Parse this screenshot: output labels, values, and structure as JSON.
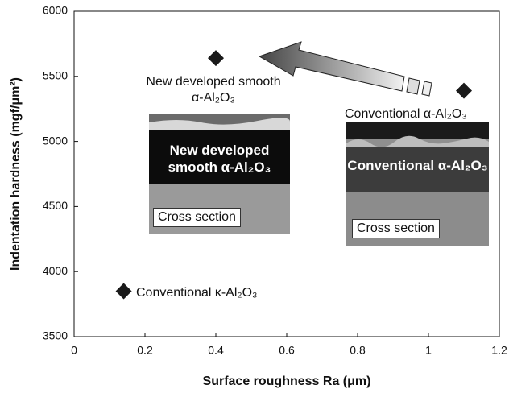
{
  "chart_data": {
    "type": "scatter",
    "x_label": "Surface roughness Ra (μm)",
    "y_label": "Indentation hardness (mgf/μm²)",
    "x": [
      0.4,
      1.1,
      0.14
    ],
    "values": [
      5640,
      5390,
      3850
    ],
    "color": "#1a1a1a",
    "marker": "diamond",
    "point_labels": [
      "New developed smooth α-Al₂O₃",
      "Conventional α-Al₂O₃",
      "Conventional κ-Al₂O₃"
    ],
    "insets": [
      {
        "label": "New developed smooth α-Al₂O₃",
        "caption": "Cross section"
      },
      {
        "label": "Conventional α-Al₂O₃",
        "caption": "Cross section"
      }
    ],
    "xlim": [
      0,
      1.2
    ],
    "xticks": [
      0,
      0.2,
      0.4,
      0.6,
      0.8,
      1,
      1.2
    ],
    "ylim": [
      3500,
      6000
    ],
    "yticks": [
      3500,
      4000,
      4500,
      5000,
      5500,
      6000
    ]
  }
}
